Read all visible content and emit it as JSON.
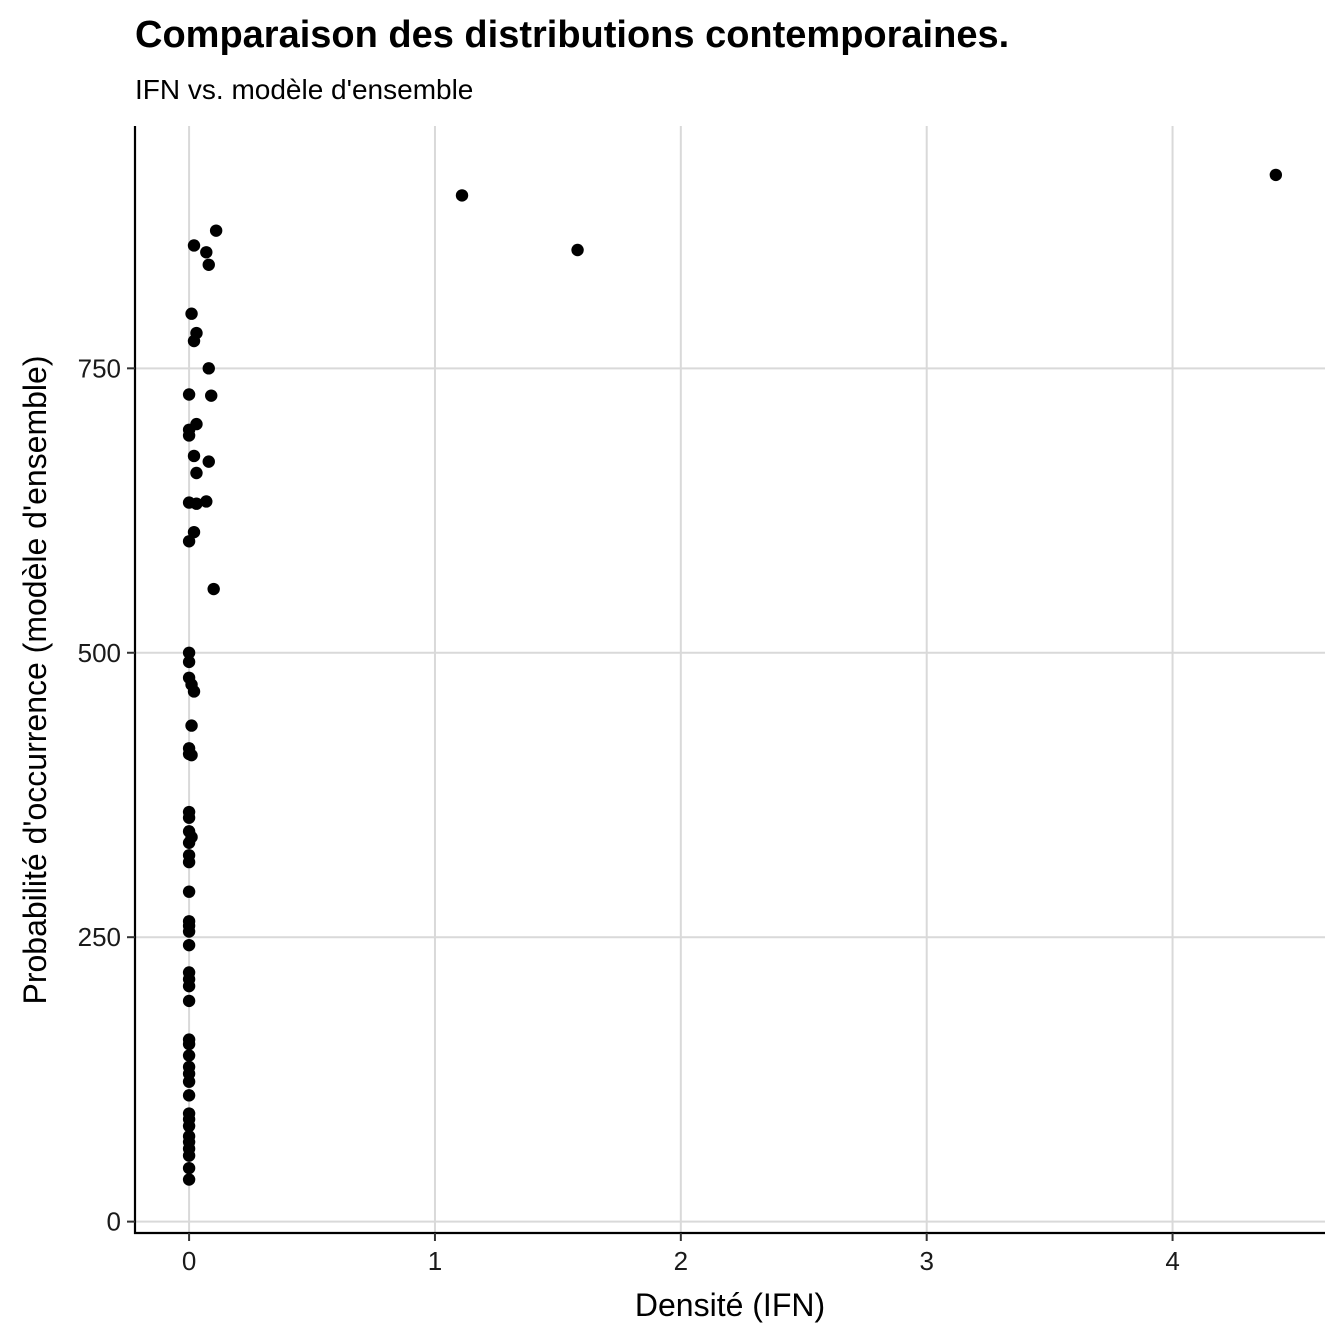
{
  "chart_data": {
    "type": "scatter",
    "title": "Comparaison des distributions contemporaines.",
    "subtitle": "IFN vs. modèle d'ensemble",
    "xlabel": "Densité (IFN)",
    "ylabel": "Probabilité d'occurrence (modèle d'ensemble)",
    "xlim": [
      -0.22,
      4.62
    ],
    "ylim": [
      -10,
      963
    ],
    "x_ticks": [
      0,
      1,
      2,
      3,
      4
    ],
    "y_ticks": [
      0,
      250,
      500,
      750
    ],
    "grid": true,
    "point_color": "#000000",
    "grid_color": "#d9d9d9",
    "series": [
      {
        "points": [
          [
            4.42,
            920
          ],
          [
            1.11,
            902
          ],
          [
            1.58,
            854
          ],
          [
            0.11,
            871
          ],
          [
            0.02,
            858
          ],
          [
            0.07,
            852
          ],
          [
            0.08,
            841
          ],
          [
            0.01,
            798
          ],
          [
            0.03,
            781
          ],
          [
            0.02,
            774
          ],
          [
            0.08,
            750
          ],
          [
            0.0,
            727
          ],
          [
            0.09,
            726
          ],
          [
            0.03,
            701
          ],
          [
            0.0,
            696
          ],
          [
            0.0,
            691
          ],
          [
            0.02,
            673
          ],
          [
            0.08,
            668
          ],
          [
            0.03,
            658
          ],
          [
            0.0,
            632
          ],
          [
            0.07,
            633
          ],
          [
            0.03,
            631
          ],
          [
            0.02,
            606
          ],
          [
            0.0,
            598
          ],
          [
            0.1,
            556
          ],
          [
            0.0,
            500
          ],
          [
            0.0,
            492
          ],
          [
            0.0,
            478
          ],
          [
            0.01,
            472
          ],
          [
            0.02,
            466
          ],
          [
            0.01,
            436
          ],
          [
            0.0,
            416
          ],
          [
            0.0,
            411
          ],
          [
            0.01,
            410
          ],
          [
            0.0,
            360
          ],
          [
            0.0,
            355
          ],
          [
            0.0,
            343
          ],
          [
            0.01,
            338
          ],
          [
            0.0,
            333
          ],
          [
            0.0,
            322
          ],
          [
            0.0,
            316
          ],
          [
            0.0,
            290
          ],
          [
            0.0,
            264
          ],
          [
            0.0,
            260
          ],
          [
            0.0,
            255
          ],
          [
            0.0,
            243
          ],
          [
            0.0,
            219
          ],
          [
            0.0,
            213
          ],
          [
            0.0,
            207
          ],
          [
            0.0,
            194
          ],
          [
            0.0,
            160
          ],
          [
            0.0,
            156
          ],
          [
            0.0,
            146
          ],
          [
            0.0,
            136
          ],
          [
            0.0,
            130
          ],
          [
            0.0,
            123
          ],
          [
            0.0,
            111
          ],
          [
            0.0,
            95
          ],
          [
            0.0,
            90
          ],
          [
            0.0,
            84
          ],
          [
            0.0,
            75
          ],
          [
            0.0,
            70
          ],
          [
            0.0,
            64
          ],
          [
            0.0,
            58
          ],
          [
            0.0,
            47
          ],
          [
            0.0,
            37
          ]
        ]
      }
    ]
  }
}
